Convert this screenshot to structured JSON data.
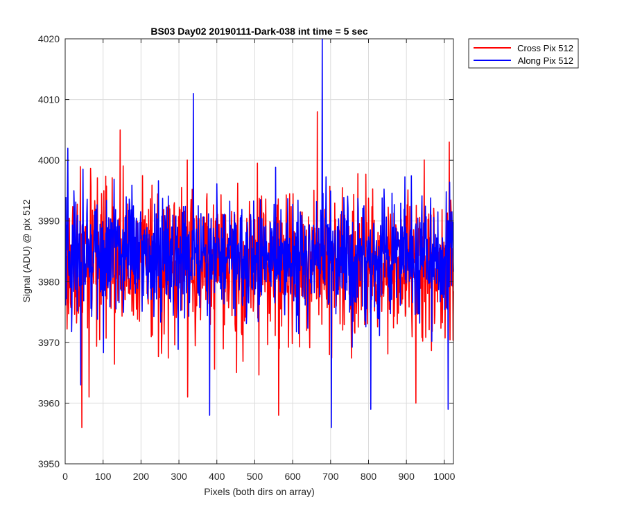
{
  "chart_data": {
    "type": "line",
    "title": "BS03 Day02 20190111-Dark-038 int time = 5 sec",
    "xlabel": "Pixels (both dirs on array)",
    "ylabel": "Signal (ADU) @ pix 512",
    "xlim": [
      0,
      1024
    ],
    "ylim": [
      3950,
      4020
    ],
    "x_ticks": [
      0,
      100,
      200,
      300,
      400,
      500,
      600,
      700,
      800,
      900,
      1000
    ],
    "y_ticks": [
      3950,
      3960,
      3970,
      3980,
      3990,
      4000,
      4010,
      4020
    ],
    "grid": true,
    "legend_position": "outside-top-right",
    "series": [
      {
        "name": "Cross Pix 512",
        "color": "#ff0000",
        "x_start": 1,
        "x_step": 1,
        "count": 1024,
        "mean": 3983,
        "spread": 6,
        "seed": 17,
        "features": [
          {
            "x": 44,
            "y": 3956
          },
          {
            "x": 63,
            "y": 3961
          },
          {
            "x": 145,
            "y": 4005
          },
          {
            "x": 323,
            "y": 3961
          },
          {
            "x": 563,
            "y": 3958
          },
          {
            "x": 665,
            "y": 4008
          },
          {
            "x": 925,
            "y": 3960
          },
          {
            "x": 1013,
            "y": 4003
          }
        ]
      },
      {
        "name": "Along Pix 512",
        "color": "#0000ff",
        "x_start": 1,
        "x_step": 1,
        "count": 1024,
        "mean": 3984,
        "spread": 5,
        "seed": 91,
        "features": [
          {
            "x": 7,
            "y": 4002
          },
          {
            "x": 41,
            "y": 3963
          },
          {
            "x": 338,
            "y": 4011
          },
          {
            "x": 381,
            "y": 3958
          },
          {
            "x": 678,
            "y": 4020
          },
          {
            "x": 702,
            "y": 3956
          },
          {
            "x": 806,
            "y": 3959
          },
          {
            "x": 1010,
            "y": 3959
          }
        ]
      }
    ]
  }
}
